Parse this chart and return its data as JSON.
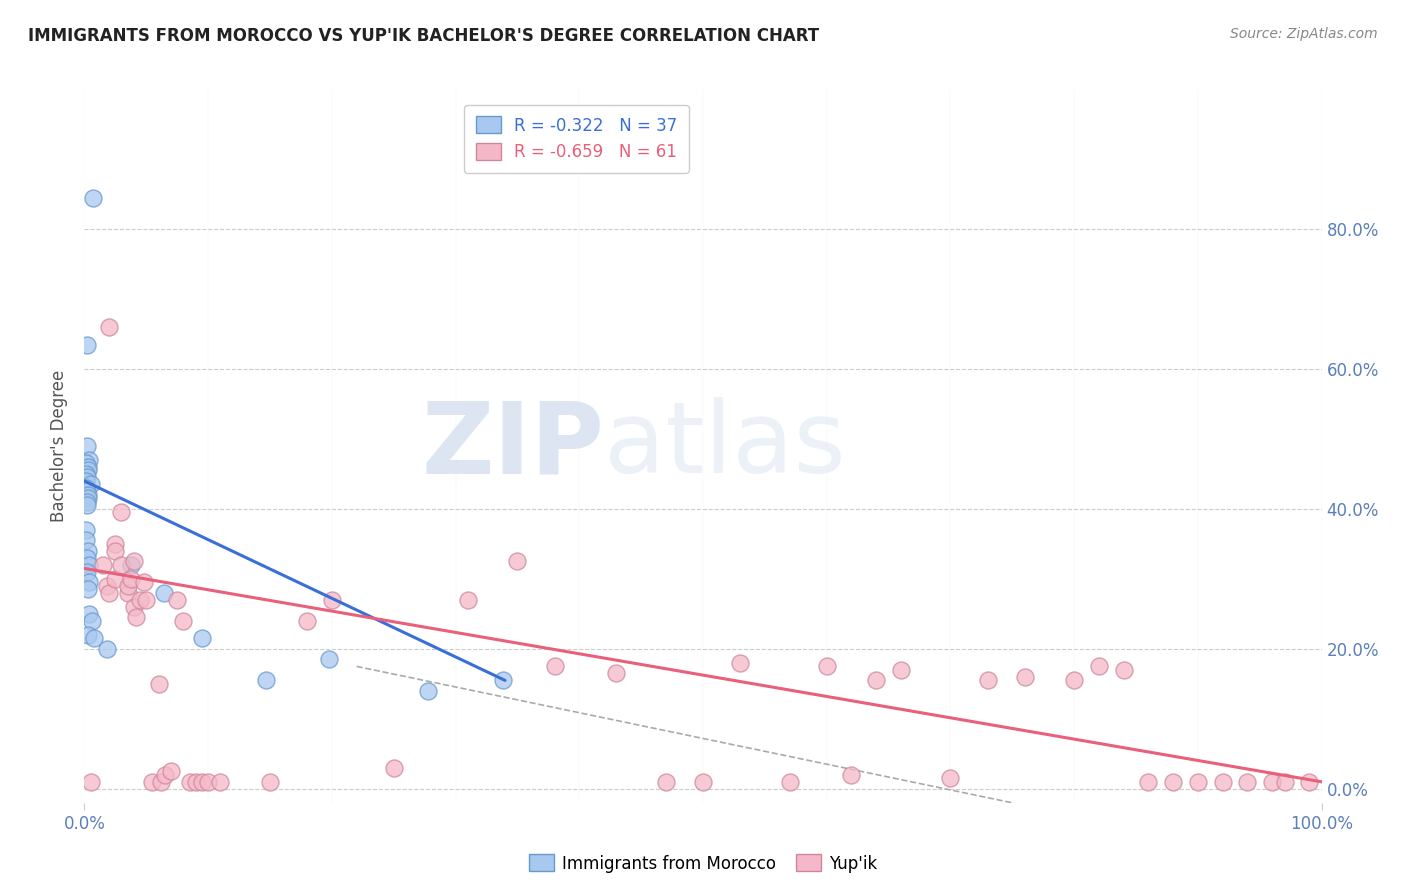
{
  "title": "IMMIGRANTS FROM MOROCCO VS YUP'IK BACHELOR'S DEGREE CORRELATION CHART",
  "source": "Source: ZipAtlas.com",
  "ylabel": "Bachelor's Degree",
  "xlim": [
    0.0,
    1.0
  ],
  "ylim": [
    -0.02,
    1.0
  ],
  "watermark_zip": "ZIP",
  "watermark_atlas": "atlas",
  "legend_blue_r": "-0.322",
  "legend_blue_n": "37",
  "legend_pink_r": "-0.659",
  "legend_pink_n": "61",
  "blue_color": "#a8c8f0",
  "blue_edge_color": "#6699cc",
  "pink_color": "#f5b8c8",
  "pink_edge_color": "#cc8899",
  "blue_line_color": "#3a6fd8",
  "pink_line_color": "#e8607a",
  "dashed_color": "#aaaaaa",
  "background_color": "#ffffff",
  "grid_color": "#cccccc",
  "tick_color": "#5a7fba",
  "blue_points_x": [
    0.007,
    0.002,
    0.002,
    0.004,
    0.001,
    0.003,
    0.003,
    0.001,
    0.002,
    0.001,
    0.005,
    0.001,
    0.002,
    0.003,
    0.003,
    0.002,
    0.002,
    0.001,
    0.001,
    0.003,
    0.002,
    0.004,
    0.002,
    0.004,
    0.003,
    0.004,
    0.006,
    0.003,
    0.008,
    0.018,
    0.038,
    0.064,
    0.095,
    0.147,
    0.198,
    0.278,
    0.338
  ],
  "blue_points_y": [
    0.845,
    0.635,
    0.49,
    0.47,
    0.465,
    0.46,
    0.455,
    0.45,
    0.445,
    0.44,
    0.435,
    0.43,
    0.425,
    0.42,
    0.415,
    0.41,
    0.405,
    0.37,
    0.355,
    0.34,
    0.33,
    0.32,
    0.31,
    0.295,
    0.285,
    0.25,
    0.24,
    0.22,
    0.215,
    0.2,
    0.32,
    0.28,
    0.215,
    0.155,
    0.185,
    0.14,
    0.155
  ],
  "pink_points_x": [
    0.005,
    0.015,
    0.018,
    0.02,
    0.02,
    0.025,
    0.025,
    0.025,
    0.03,
    0.03,
    0.035,
    0.035,
    0.038,
    0.04,
    0.04,
    0.042,
    0.045,
    0.048,
    0.05,
    0.055,
    0.06,
    0.062,
    0.065,
    0.07,
    0.075,
    0.08,
    0.085,
    0.09,
    0.095,
    0.1,
    0.11,
    0.15,
    0.18,
    0.2,
    0.25,
    0.31,
    0.35,
    0.38,
    0.43,
    0.47,
    0.5,
    0.53,
    0.57,
    0.6,
    0.62,
    0.64,
    0.66,
    0.7,
    0.73,
    0.76,
    0.8,
    0.82,
    0.84,
    0.86,
    0.88,
    0.9,
    0.92,
    0.94,
    0.96,
    0.97,
    0.99
  ],
  "pink_points_y": [
    0.01,
    0.32,
    0.29,
    0.28,
    0.66,
    0.35,
    0.34,
    0.3,
    0.395,
    0.32,
    0.28,
    0.29,
    0.3,
    0.26,
    0.325,
    0.245,
    0.27,
    0.295,
    0.27,
    0.01,
    0.15,
    0.01,
    0.02,
    0.025,
    0.27,
    0.24,
    0.01,
    0.01,
    0.01,
    0.01,
    0.01,
    0.01,
    0.24,
    0.27,
    0.03,
    0.27,
    0.325,
    0.175,
    0.165,
    0.01,
    0.01,
    0.18,
    0.01,
    0.175,
    0.02,
    0.155,
    0.17,
    0.015,
    0.155,
    0.16,
    0.155,
    0.175,
    0.17,
    0.01,
    0.01,
    0.01,
    0.01,
    0.01,
    0.01,
    0.01,
    0.01
  ],
  "blue_line_x": [
    0.0,
    0.34
  ],
  "blue_line_y": [
    0.44,
    0.155
  ],
  "pink_line_x": [
    0.0,
    1.0
  ],
  "pink_line_y": [
    0.315,
    0.01
  ],
  "dashed_line_x": [
    0.22,
    0.75
  ],
  "dashed_line_y": [
    0.175,
    -0.02
  ],
  "ytick_vals": [
    0.0,
    0.2,
    0.4,
    0.6,
    0.8
  ],
  "ytick_labels_right": [
    "0.0%",
    "20.0%",
    "40.0%",
    "60.0%",
    "80.0%"
  ]
}
